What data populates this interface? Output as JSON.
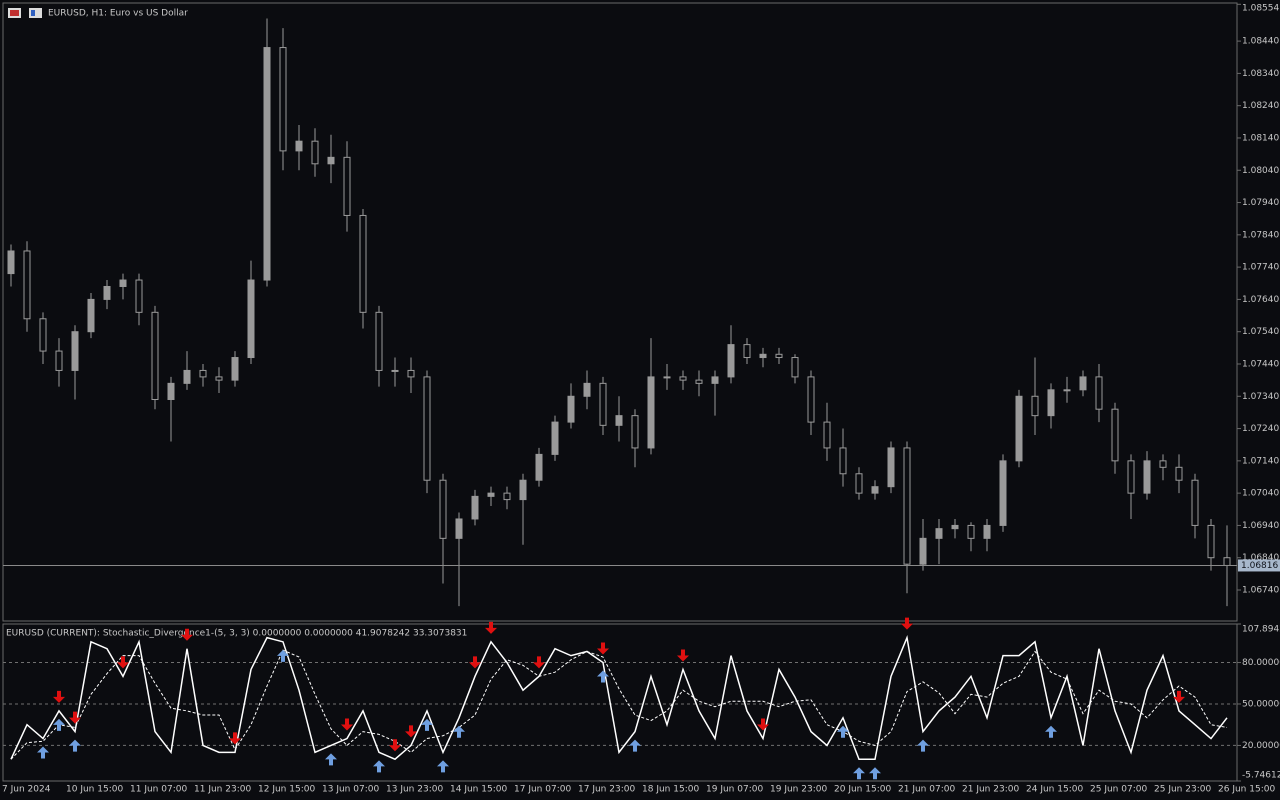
{
  "chart_data": [
    {
      "type": "candlestick",
      "title": "EURUSD, H1:  Euro vs US Dollar",
      "color": "#9a9a9a",
      "ylim": [
        1.06644,
        1.08558
      ],
      "yticks": [
        1.08554,
        {
          "value": 1.0844,
          "label": "1.08440"
        },
        {
          "value": 1.0834,
          "label": "1.08340"
        },
        {
          "value": 1.0824,
          "label": "1.08240"
        },
        {
          "value": 1.0814,
          "label": "1.08140"
        },
        {
          "value": 1.0804,
          "label": "1.08040"
        },
        {
          "value": 1.0794,
          "label": "1.07940"
        },
        {
          "value": 1.0784,
          "label": "1.07840"
        },
        {
          "value": 1.0774,
          "label": "1.07740"
        },
        {
          "value": 1.0764,
          "label": "1.07640"
        },
        {
          "value": 1.0754,
          "label": "1.07540"
        },
        {
          "value": 1.0744,
          "label": "1.07440"
        },
        {
          "value": 1.0734,
          "label": "1.07340"
        },
        {
          "value": 1.0724,
          "label": "1.07240"
        },
        {
          "value": 1.0714,
          "label": "1.07140"
        },
        {
          "value": 1.0704,
          "label": "1.07040"
        },
        {
          "value": 1.0694,
          "label": "1.06940"
        },
        {
          "value": 1.0684,
          "label": "1.06840"
        },
        {
          "value": 1.0674,
          "label": "1.06740"
        }
      ],
      "grid": false,
      "current_price": 1.06816,
      "open": [
        1.0772,
        1.0779,
        1.0758,
        1.0748,
        1.0742,
        1.0754,
        1.0764,
        1.0768,
        1.077,
        1.076,
        1.0733,
        1.0738,
        1.0742,
        1.074,
        1.0739,
        1.0746,
        1.077,
        1.0842,
        1.081,
        1.0813,
        1.0806,
        1.0808,
        1.079,
        1.076,
        1.0742,
        1.0742,
        1.074,
        1.0708,
        1.069,
        1.0696,
        1.0703,
        1.0704,
        1.0702,
        1.0708,
        1.0716,
        1.0726,
        1.0734,
        1.0738,
        1.0725,
        1.0728,
        1.0718,
        1.074,
        1.074,
        1.0739,
        1.0738,
        1.074,
        1.075,
        1.0746,
        1.0747,
        1.0746,
        1.074,
        1.0726,
        1.0718,
        1.071,
        1.0704,
        1.0706,
        1.0718,
        1.0682,
        1.069,
        1.0693,
        1.0694,
        1.069,
        1.0694,
        1.0714,
        1.0734,
        1.0728,
        1.0736,
        1.0736,
        1.074,
        1.073,
        1.0714,
        1.0704,
        1.0714,
        1.0712,
        1.0708,
        1.0694,
        1.0684
      ],
      "high": [
        1.0781,
        1.0782,
        1.076,
        1.0752,
        1.0756,
        1.0766,
        1.077,
        1.0772,
        1.0772,
        1.0762,
        1.074,
        1.0748,
        1.0744,
        1.0743,
        1.0748,
        1.0776,
        1.0851,
        1.0848,
        1.0818,
        1.0817,
        1.0815,
        1.0813,
        1.0792,
        1.0762,
        1.0746,
        1.0746,
        1.0742,
        1.071,
        1.0698,
        1.0705,
        1.0706,
        1.0706,
        1.071,
        1.0718,
        1.0728,
        1.0738,
        1.0742,
        1.074,
        1.0734,
        1.073,
        1.0752,
        1.0744,
        1.0742,
        1.0742,
        1.0742,
        1.0756,
        1.0752,
        1.0749,
        1.0749,
        1.0747,
        1.0742,
        1.0732,
        1.0724,
        1.0712,
        1.0708,
        1.072,
        1.072,
        1.0696,
        1.0696,
        1.0696,
        1.0695,
        1.0696,
        1.0716,
        1.0736,
        1.0746,
        1.0738,
        1.074,
        1.0742,
        1.0744,
        1.0732,
        1.0716,
        1.0717,
        1.0716,
        1.0716,
        1.071,
        1.0696,
        1.0694
      ],
      "low": [
        1.0768,
        1.0754,
        1.0744,
        1.0737,
        1.0733,
        1.0752,
        1.0761,
        1.0764,
        1.0756,
        1.073,
        1.072,
        1.0736,
        1.0737,
        1.0735,
        1.0737,
        1.0744,
        1.0768,
        1.0804,
        1.0804,
        1.0802,
        1.08,
        1.0785,
        1.0755,
        1.0737,
        1.0737,
        1.0735,
        1.0704,
        1.0676,
        1.0669,
        1.0694,
        1.07,
        1.0699,
        1.0688,
        1.0706,
        1.0714,
        1.0724,
        1.073,
        1.0722,
        1.072,
        1.0712,
        1.0716,
        1.0736,
        1.0736,
        1.0734,
        1.0728,
        1.0738,
        1.0744,
        1.0743,
        1.0744,
        1.0738,
        1.0722,
        1.0714,
        1.0706,
        1.0702,
        1.0702,
        1.0704,
        1.0673,
        1.068,
        1.0682,
        1.069,
        1.0686,
        1.0686,
        1.0692,
        1.0712,
        1.0722,
        1.0724,
        1.0732,
        1.0734,
        1.0726,
        1.071,
        1.0696,
        1.0702,
        1.0708,
        1.0704,
        1.069,
        1.068,
        1.0669
      ],
      "close": [
        1.0779,
        1.0758,
        1.0748,
        1.0742,
        1.0754,
        1.0764,
        1.0768,
        1.077,
        1.076,
        1.0733,
        1.0738,
        1.0742,
        1.074,
        1.0739,
        1.0746,
        1.077,
        1.0842,
        1.081,
        1.0813,
        1.0806,
        1.0808,
        1.079,
        1.076,
        1.0742,
        1.0742,
        1.074,
        1.0708,
        1.069,
        1.0696,
        1.0703,
        1.0704,
        1.0702,
        1.0708,
        1.0716,
        1.0726,
        1.0734,
        1.0738,
        1.0725,
        1.0728,
        1.0718,
        1.074,
        1.074,
        1.0739,
        1.0738,
        1.074,
        1.075,
        1.0746,
        1.0747,
        1.0746,
        1.074,
        1.0726,
        1.0718,
        1.071,
        1.0704,
        1.0706,
        1.0718,
        1.0682,
        1.069,
        1.0693,
        1.0694,
        1.069,
        1.0694,
        1.0714,
        1.0734,
        1.0728,
        1.0736,
        1.0736,
        1.074,
        1.073,
        1.0714,
        1.0704,
        1.0714,
        1.0712,
        1.0708,
        1.0694,
        1.0684,
        1.06816
      ],
      "categories": [
        "7 Jun 2024",
        "10 Jun 15:00",
        "11 Jun 07:00",
        "11 Jun 23:00",
        "12 Jun 15:00",
        "13 Jun 07:00",
        "13 Jun 23:00",
        "14 Jun 15:00",
        "17 Jun 07:00",
        "17 Jun 23:00",
        "18 Jun 15:00",
        "19 Jun 07:00",
        "19 Jun 23:00",
        "20 Jun 15:00",
        "21 Jun 07:00",
        "21 Jun 23:00",
        "24 Jun 15:00",
        "25 Jun 07:00",
        "25 Jun 23:00",
        "26 Jun 15:00"
      ]
    },
    {
      "type": "line",
      "title": "EURUSD (CURRENT): Stochastic_Divergence1-(5, 3, 3) 0.0000000 0.0000000 41.9078242 33.3073831",
      "ylim": [
        -5.746129,
        107.8942
      ],
      "yticks": [
        107.8942,
        {
          "value": 80,
          "label": "80.000000"
        },
        {
          "value": 50,
          "label": "50.000000"
        },
        {
          "value": 20,
          "label": "20.000000"
        },
        -5.746129
      ],
      "grid": true,
      "series": [
        {
          "color": "#ffffff",
          "style": "solid",
          "values": [
            10,
            35,
            25,
            45,
            30,
            95,
            90,
            70,
            95,
            30,
            15,
            90,
            20,
            15,
            15,
            75,
            98,
            95,
            60,
            15,
            20,
            25,
            45,
            15,
            10,
            20,
            45,
            15,
            40,
            70,
            95,
            80,
            60,
            70,
            90,
            85,
            88,
            80,
            15,
            30,
            70,
            35,
            75,
            45,
            25,
            85,
            45,
            25,
            75,
            55,
            30,
            20,
            40,
            10,
            10,
            70,
            98,
            30,
            45,
            55,
            70,
            40,
            85,
            85,
            95,
            40,
            70,
            20,
            90,
            45,
            15,
            60,
            85,
            45,
            35,
            25,
            40
          ]
        },
        {
          "color": "#ffffff",
          "style": "dashed",
          "values": [
            10,
            22,
            23,
            35,
            33,
            57,
            72,
            85,
            85,
            65,
            47,
            45,
            42,
            42,
            17,
            35,
            63,
            89,
            84,
            57,
            32,
            20,
            30,
            28,
            23,
            15,
            25,
            27,
            33,
            42,
            68,
            82,
            78,
            70,
            73,
            82,
            88,
            84,
            61,
            42,
            38,
            45,
            60,
            52,
            48,
            52,
            52,
            52,
            48,
            52,
            53,
            35,
            30,
            23,
            20,
            30,
            59,
            66,
            58,
            43,
            57,
            55,
            65,
            70,
            88,
            73,
            68,
            43,
            60,
            52,
            50,
            40,
            53,
            63,
            55,
            35,
            33
          ]
        }
      ],
      "up_arrows": {
        "color": "#6f9fe0",
        "x": [
          2,
          3,
          4,
          17,
          20,
          23,
          26,
          27,
          28,
          37,
          39,
          52,
          53,
          54,
          57,
          65
        ]
      },
      "down_arrows": {
        "color": "#e01010",
        "x": [
          3,
          4,
          7,
          11,
          14,
          21,
          24,
          25,
          29,
          30,
          33,
          37,
          42,
          47,
          56,
          73
        ]
      }
    }
  ]
}
